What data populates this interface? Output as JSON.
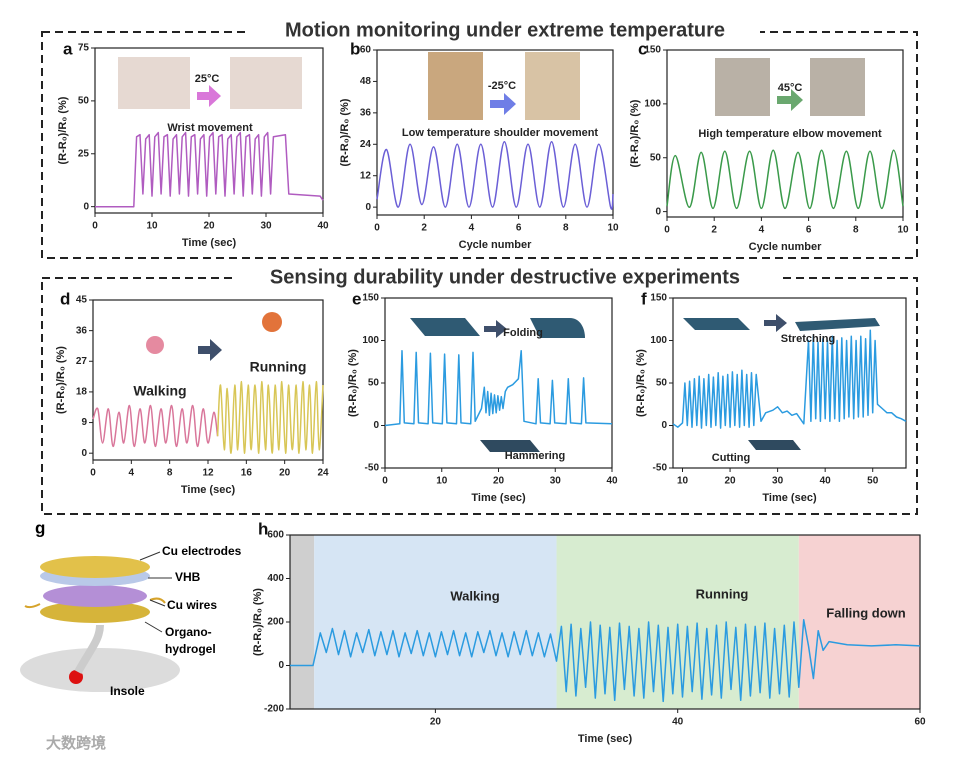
{
  "sections": [
    "Motion monitoring under extreme temperature",
    "Sensing durability under destructive experiments"
  ],
  "chart_data": [
    {
      "label": "a",
      "type": "line",
      "xlabel": "Time (sec)",
      "ylabel": "(R-R₀)/R₀ (%)",
      "annotations": [
        "Wrist movement",
        "25°C"
      ],
      "xlim": [
        0,
        40
      ],
      "xticks": [
        0,
        10,
        20,
        30,
        40
      ],
      "ylim": [
        -3,
        75
      ],
      "yticks": [
        0,
        25,
        50,
        75
      ],
      "smooth": false,
      "series": [
        {
          "color": "#b05cc0",
          "x": [
            0,
            6.8,
            7.3,
            7.9,
            8.4,
            8.9,
            9.5,
            10.0,
            10.5,
            11.1,
            11.6,
            12.1,
            12.7,
            13.2,
            13.7,
            14.3,
            14.8,
            15.3,
            15.9,
            16.4,
            16.9,
            17.5,
            18.0,
            18.5,
            19.1,
            19.6,
            20.1,
            20.7,
            21.2,
            21.7,
            22.3,
            22.8,
            23.3,
            23.9,
            24.4,
            24.9,
            25.5,
            26.0,
            26.5,
            27.1,
            27.6,
            28.1,
            28.7,
            29.2,
            29.7,
            30.3,
            30.8,
            31.3,
            33.4,
            34.0,
            39.5,
            40
          ],
          "values": [
            0,
            0,
            33,
            34,
            6,
            32,
            34,
            5,
            33,
            35,
            6,
            33,
            34,
            5,
            32,
            34,
            6,
            33,
            35,
            5,
            33,
            34,
            6,
            32,
            34,
            5,
            33,
            35,
            6,
            33,
            34,
            5,
            32,
            34,
            6,
            33,
            35,
            5,
            33,
            34,
            6,
            32,
            34,
            5,
            33,
            35,
            6,
            33,
            34,
            6,
            5,
            3
          ]
        }
      ]
    },
    {
      "label": "b",
      "type": "line",
      "xlabel": "Cycle number",
      "ylabel": "(R-R₀)/R₀ (%)",
      "annotations": [
        "Low temperature shoulder movement",
        "-25°C"
      ],
      "xlim": [
        0,
        10
      ],
      "xticks": [
        0,
        2,
        4,
        6,
        8,
        10
      ],
      "ylim": [
        -3,
        60
      ],
      "yticks": [
        0,
        12,
        24,
        36,
        48,
        60
      ],
      "smooth": true,
      "series": [
        {
          "color": "#6b5fd6",
          "x": [
            0,
            0.4,
            0.9,
            1.4,
            1.9,
            2.4,
            2.9,
            3.4,
            3.9,
            4.4,
            4.9,
            5.4,
            5.9,
            6.4,
            6.9,
            7.4,
            7.9,
            8.4,
            8.9,
            9.4,
            9.9,
            10
          ],
          "values": [
            3,
            22,
            0,
            24,
            1,
            23,
            0,
            24,
            0,
            24,
            0,
            25,
            0,
            24,
            0,
            25,
            0,
            24,
            0,
            24,
            0,
            5
          ]
        }
      ]
    },
    {
      "label": "c",
      "type": "line",
      "xlabel": "Cycle number",
      "ylabel": "(R-R₀)/R₀ (%)",
      "annotations": [
        "High temperature elbow movement",
        "45°C"
      ],
      "xlim": [
        0,
        10
      ],
      "xticks": [
        0,
        2,
        4,
        6,
        8,
        10
      ],
      "ylim": [
        -5,
        150
      ],
      "yticks": [
        0,
        50,
        100,
        150
      ],
      "smooth": true,
      "series": [
        {
          "color": "#3a9a4a",
          "x": [
            0,
            0.35,
            0.95,
            1.45,
            1.95,
            2.45,
            2.95,
            3.5,
            4.0,
            4.5,
            5.0,
            5.55,
            6.05,
            6.55,
            7.05,
            7.6,
            8.1,
            8.6,
            9.1,
            9.6,
            10
          ],
          "values": [
            5,
            52,
            4,
            55,
            3,
            56,
            3,
            56,
            3,
            57,
            3,
            55,
            3,
            57,
            3,
            56,
            3,
            56,
            3,
            57,
            5
          ]
        }
      ]
    },
    {
      "label": "d",
      "type": "line",
      "xlabel": "Time (sec)",
      "ylabel": "(R-R₀)/R₀ (%)",
      "annotations": [
        "Walking",
        "Running"
      ],
      "xlim": [
        0,
        24
      ],
      "xticks": [
        0,
        4,
        8,
        12,
        16,
        20,
        24
      ],
      "ylim": [
        -2,
        45
      ],
      "yticks": [
        0,
        9,
        18,
        27,
        36,
        45
      ],
      "smooth": true,
      "series": [
        {
          "color": "#d9769a",
          "x": [
            0,
            0.5,
            1.0,
            1.6,
            2.1,
            2.7,
            3.2,
            3.8,
            4.3,
            4.9,
            5.4,
            6.0,
            6.5,
            7.1,
            7.6,
            8.2,
            8.7,
            9.3,
            9.8,
            10.4,
            10.9,
            11.5,
            12.0,
            12.6,
            13.0
          ],
          "values": [
            10,
            13,
            3,
            13,
            2,
            12,
            3,
            14,
            2,
            13,
            3,
            14,
            2,
            13,
            3,
            14,
            2,
            13,
            3,
            14,
            2,
            13,
            3,
            12,
            5
          ]
        },
        {
          "color": "#d8c656",
          "x": [
            13.0,
            13.3,
            13.7,
            14.0,
            14.4,
            14.8,
            15.1,
            15.5,
            15.8,
            16.2,
            16.5,
            16.9,
            17.3,
            17.6,
            18.0,
            18.3,
            18.7,
            19.0,
            19.4,
            19.7,
            20.1,
            20.4,
            20.8,
            21.2,
            21.5,
            21.9,
            22.2,
            22.6,
            22.9,
            23.3,
            23.6,
            24.0
          ],
          "values": [
            5,
            20,
            1,
            19,
            0,
            20,
            1,
            21,
            0,
            20,
            1,
            20,
            0,
            21,
            1,
            20,
            0,
            20,
            1,
            21,
            0,
            20,
            1,
            20,
            0,
            21,
            1,
            20,
            0,
            21,
            1,
            20
          ]
        }
      ]
    },
    {
      "label": "e",
      "type": "line",
      "xlabel": "Time (sec)",
      "ylabel": "(R-R₀)/R₀ (%)",
      "annotations": [
        "Folding",
        "Hammering"
      ],
      "xlim": [
        0,
        40
      ],
      "xticks": [
        0,
        10,
        20,
        30,
        40
      ],
      "ylim": [
        -50,
        150
      ],
      "yticks": [
        -50,
        0,
        50,
        100,
        150
      ],
      "smooth": false,
      "series": [
        {
          "color": "#2b9be0",
          "x": [
            0,
            2.6,
            3.0,
            3.4,
            5.1,
            5.5,
            5.9,
            7.6,
            8.0,
            8.4,
            10.1,
            10.5,
            10.9,
            12.6,
            13.0,
            13.4,
            15.1,
            15.5,
            15.9,
            17.0,
            17.5,
            17.8,
            18.1,
            18.4,
            18.7,
            19.0,
            19.3,
            19.6,
            19.9,
            20.2,
            20.5,
            20.8,
            21.2,
            21.6,
            22.5,
            23.5,
            24.0,
            24.5,
            26.6,
            27.0,
            27.4,
            29.1,
            29.5,
            29.9,
            31.9,
            32.3,
            32.7,
            34.6,
            35.0,
            35.4,
            40
          ],
          "values": [
            0,
            2,
            88,
            3,
            2,
            86,
            3,
            2,
            85,
            3,
            2,
            84,
            3,
            2,
            83,
            3,
            2,
            86,
            5,
            20,
            45,
            15,
            40,
            12,
            38,
            14,
            36,
            15,
            35,
            18,
            34,
            20,
            40,
            45,
            48,
            55,
            88,
            5,
            2,
            55,
            3,
            2,
            53,
            3,
            2,
            55,
            3,
            2,
            56,
            3,
            2
          ]
        }
      ]
    },
    {
      "label": "f",
      "type": "line",
      "xlabel": "Time (sec)",
      "ylabel": "(R-R₀)/R₀ (%)",
      "annotations": [
        "Stretching",
        "Cutting"
      ],
      "xlim": [
        8,
        57
      ],
      "xticks": [
        10,
        20,
        30,
        40,
        50
      ],
      "ylim": [
        -50,
        150
      ],
      "yticks": [
        -50,
        0,
        50,
        100,
        150
      ],
      "smooth": false,
      "series": [
        {
          "color": "#2b9be0",
          "x": [
            8,
            9,
            10,
            10.5,
            11,
            11.5,
            12,
            12.5,
            13,
            13.5,
            14,
            14.5,
            15,
            15.5,
            16,
            16.5,
            17,
            17.5,
            18,
            18.5,
            19,
            19.5,
            20,
            20.5,
            21,
            21.5,
            22,
            22.5,
            23,
            23.5,
            24,
            24.5,
            25,
            25.5,
            26.5,
            27.5,
            29,
            30,
            31,
            32,
            33,
            34,
            35.5,
            36.5,
            37,
            37.5,
            38,
            38.5,
            39,
            39.5,
            40,
            40.5,
            41,
            41.5,
            42,
            42.5,
            43,
            43.5,
            44,
            44.5,
            45,
            45.5,
            46,
            46.5,
            47,
            47.5,
            48,
            48.5,
            49,
            49.5,
            50,
            50.5,
            51,
            52,
            53,
            54,
            55,
            56,
            57
          ],
          "values": [
            2,
            -2,
            3,
            50,
            0,
            52,
            -2,
            55,
            0,
            58,
            -3,
            55,
            0,
            60,
            -2,
            57,
            0,
            62,
            -3,
            58,
            0,
            60,
            -2,
            63,
            0,
            60,
            -2,
            65,
            0,
            60,
            -2,
            62,
            0,
            60,
            5,
            15,
            18,
            22,
            15,
            17,
            12,
            14,
            2,
            100,
            5,
            105,
            8,
            98,
            5,
            102,
            8,
            100,
            5,
            105,
            8,
            100,
            5,
            103,
            8,
            100,
            10,
            105,
            8,
            100,
            10,
            105,
            10,
            102,
            12,
            112,
            15,
            100,
            25,
            20,
            15,
            15,
            10,
            8,
            5
          ]
        }
      ]
    },
    {
      "label": "h",
      "type": "line",
      "xlabel": "Time (sec)",
      "ylabel": "(R-R₀)/R₀ (%)",
      "xlim": [
        8,
        60
      ],
      "xticks": [
        20,
        40,
        60
      ],
      "ylim": [
        -200,
        600
      ],
      "yticks": [
        -200,
        0,
        200,
        400,
        600
      ],
      "smooth": false,
      "regions": [
        {
          "start": 8,
          "end": 10,
          "color": "#cfcfcf"
        },
        {
          "label": "Walking",
          "start": 10,
          "end": 30,
          "color": "#d6e5f4"
        },
        {
          "label": "Running",
          "start": 30,
          "end": 50,
          "color": "#d7ecd0"
        },
        {
          "label": "Falling down",
          "start": 50,
          "end": 60,
          "color": "#f6d2d2"
        }
      ],
      "series": [
        {
          "color": "#2b9be0",
          "x": [
            8,
            9.9,
            10.5,
            11,
            11.5,
            12,
            12.5,
            13,
            13.5,
            14,
            14.5,
            15,
            15.5,
            16,
            16.5,
            17,
            17.5,
            18,
            18.5,
            19,
            19.5,
            20,
            20.5,
            21,
            21.5,
            22,
            22.5,
            23,
            23.5,
            24,
            24.5,
            25,
            25.5,
            26,
            26.5,
            27,
            27.5,
            28,
            28.5,
            29,
            29.5,
            30,
            30.4,
            30.8,
            31.2,
            31.6,
            32,
            32.4,
            32.8,
            33.2,
            33.6,
            34,
            34.4,
            34.8,
            35.2,
            35.6,
            36,
            36.4,
            36.8,
            37.2,
            37.6,
            38,
            38.4,
            38.8,
            39.2,
            39.6,
            40,
            40.4,
            40.8,
            41.2,
            41.6,
            42,
            42.4,
            42.8,
            43.2,
            43.6,
            44,
            44.4,
            44.8,
            45.2,
            45.6,
            46,
            46.4,
            46.8,
            47.2,
            47.6,
            48,
            48.4,
            48.8,
            49.2,
            49.6,
            50,
            50.4,
            50.8,
            51.2,
            51.6,
            52,
            52.5,
            54,
            56,
            58,
            60
          ],
          "values": [
            0,
            0,
            150,
            60,
            170,
            50,
            160,
            40,
            150,
            60,
            165,
            45,
            155,
            50,
            160,
            40,
            150,
            55,
            160,
            45,
            150,
            40,
            155,
            50,
            160,
            45,
            150,
            40,
            155,
            60,
            160,
            45,
            150,
            40,
            155,
            50,
            160,
            45,
            150,
            40,
            145,
            20,
            180,
            -120,
            190,
            -140,
            170,
            -100,
            200,
            -150,
            185,
            -130,
            175,
            -160,
            195,
            -110,
            180,
            -140,
            170,
            -150,
            200,
            -120,
            185,
            -165,
            175,
            -130,
            190,
            -145,
            180,
            -120,
            195,
            -155,
            170,
            -135,
            185,
            -150,
            200,
            -110,
            175,
            -160,
            190,
            -140,
            180,
            -125,
            195,
            -150,
            170,
            -130,
            185,
            -145,
            200,
            -100,
            210,
            90,
            -60,
            160,
            70,
            110,
            95,
            90,
            95,
            90
          ]
        }
      ]
    }
  ],
  "diagram": {
    "label": "g",
    "parts": [
      "Cu electrodes",
      "VHB",
      "Cu wires"
    ],
    "material": [
      "Organo-",
      "hydrogel"
    ],
    "base": "Insole"
  },
  "watermark": "大数跨境"
}
